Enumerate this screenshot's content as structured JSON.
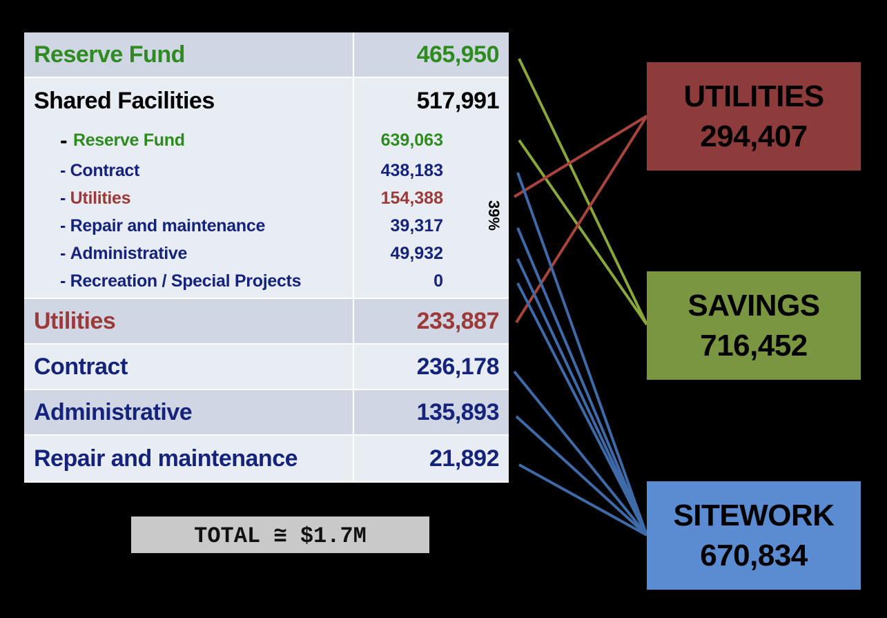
{
  "table": {
    "rows": [
      {
        "label": "Reserve Fund",
        "value": "465,950"
      },
      {
        "label": "Shared Facilities",
        "value": "517,991"
      },
      {
        "label": "Utilities",
        "value": "233,887"
      },
      {
        "label": "Contract",
        "value": "236,178"
      },
      {
        "label": "Administrative",
        "value": "135,893"
      },
      {
        "label": "Repair and maintenance",
        "value": "21,892"
      }
    ],
    "sub_items": [
      {
        "prefix": "- ",
        "label": "Reserve Fund",
        "value": "639,063"
      },
      {
        "prefix": "- ",
        "label": "Contract",
        "value": "438,183"
      },
      {
        "prefix": "- ",
        "label": "Utilities",
        "value": "154,388"
      },
      {
        "prefix": "- ",
        "label": "Repair and maintenance",
        "value": "39,317"
      },
      {
        "prefix": "- ",
        "label": "Administrative",
        "value": "49,932"
      },
      {
        "prefix": "- ",
        "label": "Recreation / Special Projects",
        "value": "0"
      }
    ],
    "brace_label": "39%"
  },
  "total_label": "TOTAL ≅ $1.7M",
  "boxes": {
    "utilities": {
      "title": "UTILITIES",
      "value": "294,407"
    },
    "savings": {
      "title": "SAVINGS",
      "value": "716,452"
    },
    "sitework": {
      "title": "SITEWORK",
      "value": "670,834"
    }
  },
  "colors": {
    "green_text": "#2e8b1f",
    "red_text": "#9c3a3a",
    "blue_text": "#15247a",
    "utilities_box": "#8e3b3b",
    "savings_box": "#7b9640",
    "sitework_box": "#5b8bd0",
    "green_line": "#8aa83a",
    "red_line": "#a8433d",
    "blue_line": "#3f6aa8"
  }
}
